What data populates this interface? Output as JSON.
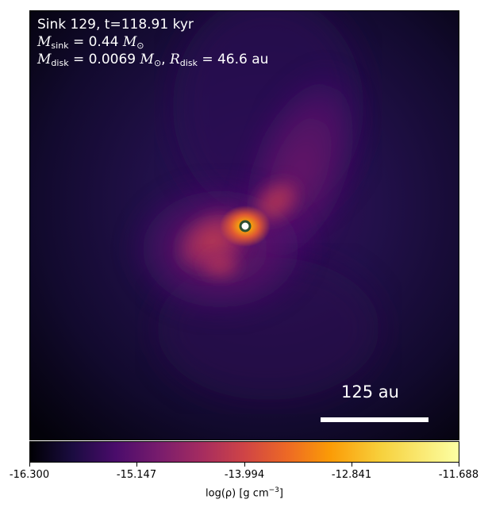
{
  "annotations": {
    "line1": "Sink 129, t=118.91 kyr",
    "msink_symbol": "M",
    "msink_sub": "sink",
    "msink_value": "= 0.44",
    "mdisk_symbol": "M",
    "mdisk_sub": "disk",
    "mdisk_value": "= 0.0069",
    "rdisk_symbol": "R",
    "rdisk_sub": "disk",
    "rdisk_value": "= 46.6 au",
    "solar_mass_unit": "M",
    "solar_sub": "⊙"
  },
  "scale_bar": {
    "label": "125 au"
  },
  "colorbar": {
    "colormap": "inferno",
    "min": -16.3,
    "max": -11.688,
    "tick_labels": [
      "-16.300",
      "-15.147",
      "-13.994",
      "-12.841",
      "-11.688"
    ],
    "label_prefix": "log(ρ) [g cm",
    "label_exponent": "−3",
    "label_suffix": "]"
  },
  "sink_marker": {
    "fill_color": "#ffffff",
    "ring_color": "#2f4f2f"
  },
  "colors": {
    "background_dark": "#000004",
    "disk_core": "#fca50a",
    "spiral_arm": "#cb4149",
    "envelope": "#5c126e"
  }
}
